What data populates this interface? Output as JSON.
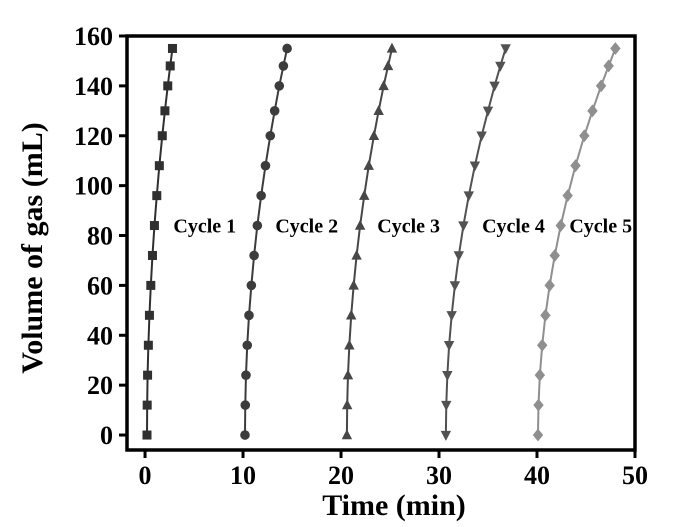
{
  "figure": {
    "background": "#ffffff",
    "axis_color": "#000000"
  },
  "chart_data": {
    "type": "line",
    "title": "",
    "xlabel": "Time (min)",
    "ylabel": "Volume of gas (mL)",
    "xlim": [
      -1.84,
      50
    ],
    "ylim": [
      -6,
      160
    ],
    "x_ticks": [
      0,
      10,
      20,
      30,
      40,
      50
    ],
    "y_ticks": [
      0,
      20,
      40,
      60,
      80,
      100,
      120,
      140,
      160
    ],
    "grid": false,
    "legend_position": "none",
    "series": [
      {
        "name": "Cycle 1",
        "marker": "square",
        "color": "#303030",
        "points": [
          [
            0.2,
            0
          ],
          [
            0.22,
            12
          ],
          [
            0.26,
            24
          ],
          [
            0.34,
            36
          ],
          [
            0.45,
            48
          ],
          [
            0.59,
            60
          ],
          [
            0.76,
            72
          ],
          [
            0.96,
            84
          ],
          [
            1.2,
            96
          ],
          [
            1.46,
            108
          ],
          [
            1.76,
            120
          ],
          [
            2.03,
            130
          ],
          [
            2.32,
            140
          ],
          [
            2.57,
            148
          ],
          [
            2.8,
            155
          ]
        ]
      },
      {
        "name": "Cycle 2",
        "marker": "circle",
        "color": "#3c3c3c",
        "points": [
          [
            10.2,
            0
          ],
          [
            10.23,
            12
          ],
          [
            10.3,
            24
          ],
          [
            10.43,
            36
          ],
          [
            10.61,
            48
          ],
          [
            10.85,
            60
          ],
          [
            11.13,
            72
          ],
          [
            11.46,
            84
          ],
          [
            11.85,
            96
          ],
          [
            12.29,
            108
          ],
          [
            12.78,
            120
          ],
          [
            13.23,
            130
          ],
          [
            13.7,
            140
          ],
          [
            14.12,
            148
          ],
          [
            14.5,
            155
          ]
        ]
      },
      {
        "name": "Cycle 3",
        "marker": "triangle-up",
        "color": "#474747",
        "points": [
          [
            20.6,
            0
          ],
          [
            20.63,
            12
          ],
          [
            20.71,
            24
          ],
          [
            20.85,
            36
          ],
          [
            21.04,
            48
          ],
          [
            21.29,
            60
          ],
          [
            21.59,
            72
          ],
          [
            21.95,
            84
          ],
          [
            22.37,
            96
          ],
          [
            22.83,
            108
          ],
          [
            23.36,
            120
          ],
          [
            23.84,
            130
          ],
          [
            24.35,
            140
          ],
          [
            24.8,
            148
          ],
          [
            25.2,
            155
          ]
        ]
      },
      {
        "name": "Cycle 4",
        "marker": "triangle-down",
        "color": "#525252",
        "points": [
          [
            30.7,
            0
          ],
          [
            30.74,
            12
          ],
          [
            30.85,
            24
          ],
          [
            31.03,
            36
          ],
          [
            31.29,
            48
          ],
          [
            31.62,
            60
          ],
          [
            32.02,
            72
          ],
          [
            32.49,
            84
          ],
          [
            33.04,
            96
          ],
          [
            33.66,
            108
          ],
          [
            34.35,
            120
          ],
          [
            35.0,
            130
          ],
          [
            35.67,
            140
          ],
          [
            36.26,
            148
          ],
          [
            36.8,
            155
          ]
        ]
      },
      {
        "name": "Cycle 5",
        "marker": "diamond",
        "color": "#8f8f8f",
        "points": [
          [
            40.1,
            0
          ],
          [
            40.15,
            12
          ],
          [
            40.29,
            24
          ],
          [
            40.53,
            36
          ],
          [
            40.86,
            48
          ],
          [
            41.29,
            60
          ],
          [
            41.81,
            72
          ],
          [
            42.42,
            84
          ],
          [
            43.13,
            96
          ],
          [
            43.93,
            108
          ],
          [
            44.83,
            120
          ],
          [
            45.66,
            130
          ],
          [
            46.54,
            140
          ],
          [
            47.31,
            148
          ],
          [
            48.0,
            155
          ]
        ]
      }
    ],
    "annotations": [
      {
        "text": "Cycle 1",
        "x": 6.1,
        "y": 84
      },
      {
        "text": "Cycle 2",
        "x": 16.5,
        "y": 84
      },
      {
        "text": "Cycle 3",
        "x": 26.9,
        "y": 84
      },
      {
        "text": "Cycle 4",
        "x": 37.6,
        "y": 84
      },
      {
        "text": "Cycle 5",
        "x": 46.5,
        "y": 84
      }
    ]
  }
}
